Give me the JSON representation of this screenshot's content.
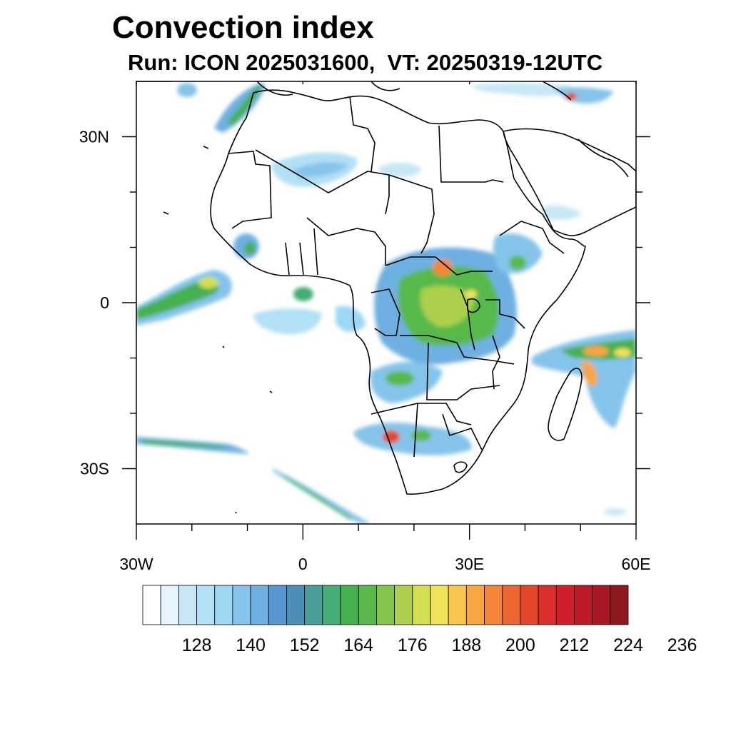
{
  "title": "Convection index",
  "subtitle": "Run: ICON 2025031600,  VT: 20250319-12UTC",
  "map": {
    "lon_range": [
      -30,
      60
    ],
    "lat_range": [
      -40,
      40
    ],
    "x_ticks": [
      {
        "lon": -30,
        "label": "30W"
      },
      {
        "lon": 0,
        "label": "0"
      },
      {
        "lon": 30,
        "label": "30E"
      },
      {
        "lon": 60,
        "label": "60E"
      }
    ],
    "y_ticks": [
      {
        "lat": 30,
        "label": "30N"
      },
      {
        "lat": 0,
        "label": "0"
      },
      {
        "lat": -30,
        "label": "30S"
      }
    ],
    "minor_lon_ticks": [
      -20,
      -10,
      10,
      20,
      40,
      50
    ],
    "minor_lat_ticks": [
      20,
      10,
      -10,
      -20
    ]
  },
  "colorbar": {
    "colors": [
      "#ffffff",
      "#e6f4fb",
      "#c8e8f6",
      "#b2e0f4",
      "#9dd8f3",
      "#85c4ea",
      "#6eb0e1",
      "#5697d1",
      "#4b8fb6",
      "#489e96",
      "#45ac75",
      "#46b04f",
      "#59b94b",
      "#86c34b",
      "#acd04c",
      "#d4df51",
      "#f1e359",
      "#f8c64e",
      "#f8a543",
      "#f38539",
      "#ec6530",
      "#e4462b",
      "#dc2e2c",
      "#d01f2a",
      "#bc1a28",
      "#a71a25",
      "#8e1a20"
    ],
    "labels": [
      "128",
      "140",
      "152",
      "164",
      "176",
      "188",
      "200",
      "212",
      "224",
      "236"
    ]
  }
}
